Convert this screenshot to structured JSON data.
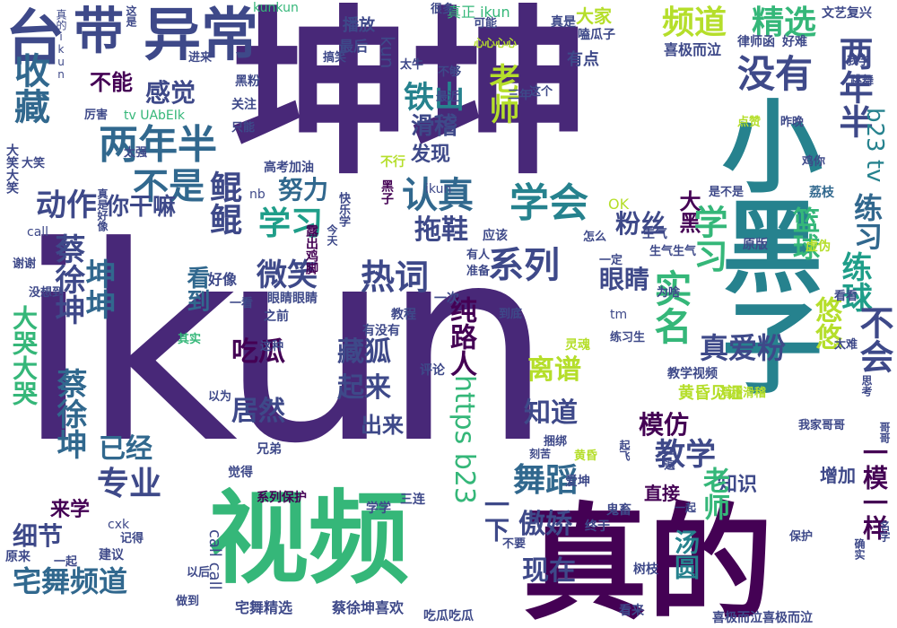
{
  "palette": {
    "dark_purple": "#440154",
    "purple": "#482878",
    "indigo": "#3e4989",
    "blue": "#31688e",
    "teal": "#26828e",
    "green_teal": "#1f9e89",
    "green": "#35b779",
    "light_green": "#6ece58",
    "yellow_green": "#b5de2b",
    "yellow": "#d5e21a"
  },
  "words": [
    {
      "text": "ikun"
    },
    {
      "text": "坤坤"
    },
    {
      "text": "小黑子"
    },
    {
      "text": "视频"
    },
    {
      "text": "真的"
    },
    {
      "text": "台"
    },
    {
      "text": "带"
    },
    {
      "text": "异常"
    },
    {
      "text": "频道"
    },
    {
      "text": "精选"
    },
    {
      "text": "没有"
    },
    {
      "text": "两年半"
    },
    {
      "text": "两年半"
    },
    {
      "text": "收藏"
    },
    {
      "text": "不能"
    },
    {
      "text": "感觉"
    },
    {
      "text": "铁山"
    },
    {
      "text": "老师"
    },
    {
      "text": "滑稽"
    },
    {
      "text": "发现"
    },
    {
      "text": "不是"
    },
    {
      "text": "动作"
    },
    {
      "text": "你干嘛"
    },
    {
      "text": "努力"
    },
    {
      "text": "认真"
    },
    {
      "text": "学会"
    },
    {
      "text": "学习"
    },
    {
      "text": "拖鞋"
    },
    {
      "text": "粉丝"
    },
    {
      "text": "练习"
    },
    {
      "text": "大黑"
    },
    {
      "text": "鲲鲲"
    },
    {
      "text": "热词"
    },
    {
      "text": "系列"
    },
    {
      "text": "微笑"
    },
    {
      "text": "眼睛"
    },
    {
      "text": "看到"
    },
    {
      "text": "纯路人"
    },
    {
      "text": "实名"
    },
    {
      "text": "学习"
    },
    {
      "text": "真爱粉"
    },
    {
      "text": "篮球"
    },
    {
      "text": "练球"
    },
    {
      "text": "悠悠"
    },
    {
      "text": "不会"
    },
    {
      "text": "坤坤"
    },
    {
      "text": "蔡徐坤"
    },
    {
      "text": "大哭大哭"
    },
    {
      "text": "蔡徐坤"
    },
    {
      "text": "吃瓜"
    },
    {
      "text": "藏狐"
    },
    {
      "text": "离谱"
    },
    {
      "text": "起来"
    },
    {
      "text": "居然"
    },
    {
      "text": "知道"
    },
    {
      "text": "模仿"
    },
    {
      "text": "出来"
    },
    {
      "text": "https b23"
    },
    {
      "text": "已经"
    },
    {
      "text": "舞蹈"
    },
    {
      "text": "教学"
    },
    {
      "text": "专业"
    },
    {
      "text": "一下"
    },
    {
      "text": "傲娇"
    },
    {
      "text": "细节"
    },
    {
      "text": "宅舞频道"
    },
    {
      "text": "现在"
    },
    {
      "text": "直接"
    },
    {
      "text": "知识"
    },
    {
      "text": "老师"
    },
    {
      "text": "一模一样"
    },
    {
      "text": "汤圆"
    },
    {
      "text": "b23 tv"
    },
    {
      "text": "来学"
    },
    {
      "text": "kun"
    },
    {
      "text": "kunkun"
    },
    {
      "text": "大家"
    },
    {
      "text": "播放"
    },
    {
      "text": "最后"
    },
    {
      "text": "真正 ikun"
    },
    {
      "text": "喜极而泣"
    },
    {
      "text": "有点"
    },
    {
      "text": "宅舞精选"
    },
    {
      "text": "call call"
    },
    {
      "text": "蔡徐坤喜欢"
    },
    {
      "text": "黄昏见证"
    },
    {
      "text": "系列保护"
    },
    {
      "text": "教学视频"
    },
    {
      "text": "荔枝"
    },
    {
      "text": "原版"
    },
    {
      "text": "文艺复兴"
    },
    {
      "text": "真是"
    },
    {
      "text": "嗑瓜子"
    },
    {
      "text": "律师函"
    },
    {
      "text": "好难"
    },
    {
      "text": "关注"
    },
    {
      "text": "黑粉"
    },
    {
      "text": "nb"
    },
    {
      "text": "OK"
    },
    {
      "text": "call"
    },
    {
      "text": "tm"
    },
    {
      "text": "cxk"
    },
    {
      "text": "tv UAbEIk"
    },
    {
      "text": "露出鸡脚"
    },
    {
      "text": "黑子"
    },
    {
      "text": "生气"
    },
    {
      "text": "爱坤"
    },
    {
      "text": "三连"
    },
    {
      "text": "建议"
    },
    {
      "text": "原来"
    },
    {
      "text": "树枝"
    },
    {
      "text": "终于"
    },
    {
      "text": "看来"
    },
    {
      "text": "好像"
    },
    {
      "text": "眼睛眼睛"
    },
    {
      "text": "之前"
    },
    {
      "text": "应该"
    },
    {
      "text": "一次"
    },
    {
      "text": "有没有"
    },
    {
      "text": "教程"
    },
    {
      "text": "评论"
    },
    {
      "text": "灵魂"
    },
    {
      "text": "虚伪"
    },
    {
      "text": "兄弟"
    },
    {
      "text": "觉得"
    },
    {
      "text": "学学"
    },
    {
      "text": "鬼畜"
    },
    {
      "text": "喜极而泣喜极而泣"
    },
    {
      "text": "吃瓜吃瓜"
    },
    {
      "text": "高考加油"
    },
    {
      "text": "快乐学"
    },
    {
      "text": "不行"
    },
    {
      "text": "三年"
    },
    {
      "text": "很多"
    },
    {
      "text": "太牛"
    },
    {
      "text": "不够"
    },
    {
      "text": "进来"
    },
    {
      "text": "只能"
    },
    {
      "text": "厉害"
    },
    {
      "text": "太强"
    },
    {
      "text": "点赞"
    },
    {
      "text": "思考"
    },
    {
      "text": "谢谢"
    },
    {
      "text": "没想到"
    },
    {
      "text": "其实"
    },
    {
      "text": "这种"
    },
    {
      "text": "以为"
    },
    {
      "text": "一定"
    },
    {
      "text": "到底"
    },
    {
      "text": "一看"
    },
    {
      "text": "准备"
    },
    {
      "text": "有人"
    },
    {
      "text": "今天"
    },
    {
      "text": "为啥"
    },
    {
      "text": "看看"
    },
    {
      "text": "太难"
    },
    {
      "text": "我家哥哥"
    },
    {
      "text": "名字"
    },
    {
      "text": "一遍"
    },
    {
      "text": "以后"
    },
    {
      "text": "做到"
    },
    {
      "text": "记得"
    },
    {
      "text": "一起"
    },
    {
      "text": "可能"
    },
    {
      "text": "最近"
    },
    {
      "text": "昨晚"
    },
    {
      "text": "是不是"
    },
    {
      "text": "滑稽滑稽"
    },
    {
      "text": "我学"
    },
    {
      "text": "跳舞"
    },
    {
      "text": "练习生"
    },
    {
      "text": "生气生气"
    },
    {
      "text": "捆绑"
    },
    {
      "text": "起飞"
    },
    {
      "text": "增加"
    },
    {
      "text": "黄昏"
    },
    {
      "text": "搞笑"
    },
    {
      "text": "保护"
    },
    {
      "text": "确实"
    },
    {
      "text": "怎么"
    },
    {
      "text": "这个"
    },
    {
      "text": "哥哥"
    },
    {
      "text": "大笑"
    },
    {
      "text": "不要"
    },
    {
      "text": "鸡你"
    },
    {
      "text": "真的ikun"
    },
    {
      "text": "心心心心"
    },
    {
      "text": "这是"
    },
    {
      "text": "真是好像"
    },
    {
      "text": "大笑大笑"
    },
    {
      "text": "刻苦"
    },
    {
      "text": "一起"
    },
    {
      "text": "ikun"
    }
  ]
}
